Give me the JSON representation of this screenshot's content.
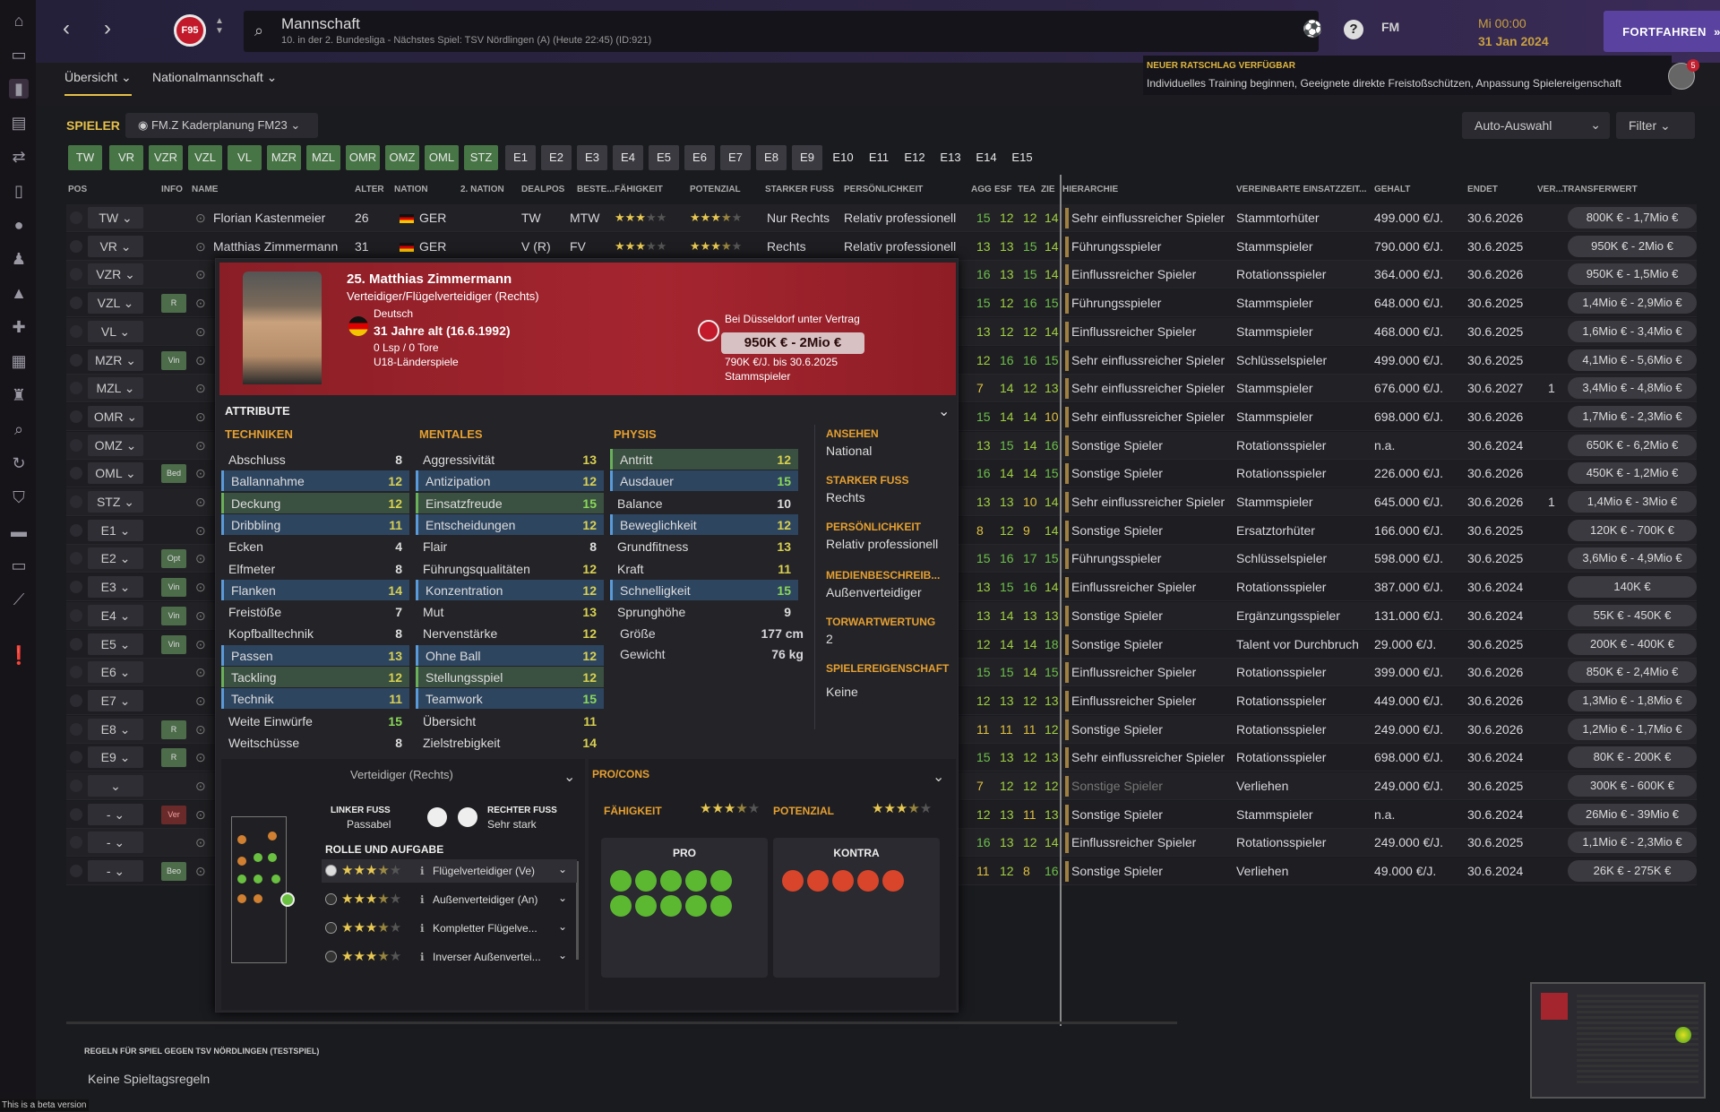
{
  "header": {
    "title": "Mannschaft",
    "subtitle": "10. in der 2. Bundesliga - Nächstes Spiel: TSV Nördlingen (A) (Heute 22:45) (ID:921)",
    "club_badge": "F95",
    "fm_label": "FM",
    "time": "Mi 00:00",
    "date": "31 Jan 2024",
    "continue_label": "FORTFAHREN"
  },
  "subnav": {
    "overview": "Übersicht",
    "national": "Nationalmannschaft"
  },
  "advice": {
    "title": "NEUER RATSCHLAG VERFÜGBAR",
    "text": "Individuelles Training beginnen, Geeignete direkte Freistoßschützen, Anpassung Spielereigenschaft",
    "badge": "5"
  },
  "toolbar": {
    "players_title": "SPIELER",
    "view": "FM.Z Kaderplanung FM23",
    "auto": "Auto-Auswahl",
    "filter": "Filter"
  },
  "pos_tabs": [
    "TW",
    "VR",
    "VZR",
    "VZL",
    "VL",
    "MZR",
    "MZL",
    "OMR",
    "OMZ",
    "OML",
    "STZ",
    "E1",
    "E2",
    "E3",
    "E4",
    "E5",
    "E6",
    "E7",
    "E8",
    "E9",
    "E10",
    "E11",
    "E12",
    "E13",
    "E14",
    "E15"
  ],
  "columns": [
    "POS",
    "INFO",
    "NAME",
    "ALTER",
    "NATION",
    "2. NATION",
    "DEALPOS",
    "BESTE...",
    "FÄHIGKEIT",
    "POTENZIAL",
    "STARKER FUSS",
    "PERSÖNLICHKEIT",
    "AGG",
    "ESF",
    "TEA",
    "ZIE",
    "HIERARCHIE",
    "VEREINBARTE EINSATZZEIT...",
    "GEHALT",
    "ENDET",
    "VER...",
    "TRANSFERWERT"
  ],
  "rows": [
    {
      "pos": "TW",
      "info": "",
      "name": "Florian Kastenmeier",
      "age": "26",
      "nation": "GER",
      "dealpos": "TW",
      "best": "MTW",
      "foot": "Nur Rechts",
      "pers": "Relativ professionell",
      "agg": "15",
      "esf": "12",
      "tea": "12",
      "zie": "14",
      "hier": "Sehr einflussreicher Spieler",
      "time": "Stammtorhüter",
      "wage": "499.000 €/J.",
      "end": "30.6.2026",
      "ver": "",
      "tv": "800K € - 1,7Mio €"
    },
    {
      "pos": "VR",
      "info": "",
      "name": "Matthias Zimmermann",
      "age": "31",
      "nation": "GER",
      "dealpos": "V (R)",
      "best": "FV",
      "foot": "Rechts",
      "pers": "Relativ professionell",
      "agg": "13",
      "esf": "13",
      "tea": "15",
      "zie": "14",
      "hier": "Führungsspieler",
      "time": "Stammspieler",
      "wage": "790.000 €/J.",
      "end": "30.6.2025",
      "ver": "",
      "tv": "950K € - 2Mio €"
    },
    {
      "pos": "VZR",
      "info": "",
      "agg": "16",
      "esf": "13",
      "tea": "15",
      "zie": "14",
      "hier": "Einflussreicher Spieler",
      "time": "Rotationsspieler",
      "wage": "364.000 €/J.",
      "end": "30.6.2026",
      "ver": "",
      "tv": "950K € - 1,5Mio €"
    },
    {
      "pos": "VZL",
      "info": "R",
      "agg": "15",
      "esf": "12",
      "tea": "16",
      "zie": "15",
      "hier": "Führungsspieler",
      "time": "Stammspieler",
      "wage": "648.000 €/J.",
      "end": "30.6.2025",
      "ver": "",
      "tv": "1,4Mio € - 2,9Mio €"
    },
    {
      "pos": "VL",
      "info": "",
      "agg": "13",
      "esf": "12",
      "tea": "12",
      "zie": "14",
      "hier": "Einflussreicher Spieler",
      "time": "Stammspieler",
      "wage": "468.000 €/J.",
      "end": "30.6.2025",
      "ver": "",
      "tv": "1,6Mio € - 3,4Mio €"
    },
    {
      "pos": "MZR",
      "info": "Vin",
      "agg": "12",
      "esf": "16",
      "tea": "16",
      "zie": "15",
      "hier": "Sehr einflussreicher Spieler",
      "time": "Schlüsselspieler",
      "wage": "499.000 €/J.",
      "end": "30.6.2025",
      "ver": "",
      "tv": "4,1Mio € - 5,6Mio €"
    },
    {
      "pos": "MZL",
      "info": "",
      "agg": "7",
      "esf": "14",
      "tea": "12",
      "zie": "13",
      "hier": "Sehr einflussreicher Spieler",
      "time": "Stammspieler",
      "wage": "676.000 €/J.",
      "end": "30.6.2027",
      "ver": "1",
      "tv": "3,4Mio € - 4,8Mio €"
    },
    {
      "pos": "OMR",
      "info": "",
      "agg": "15",
      "esf": "14",
      "tea": "14",
      "zie": "10",
      "hier": "Sehr einflussreicher Spieler",
      "time": "Stammspieler",
      "wage": "698.000 €/J.",
      "end": "30.6.2026",
      "ver": "",
      "tv": "1,7Mio € - 2,3Mio €"
    },
    {
      "pos": "OMZ",
      "info": "",
      "agg": "13",
      "esf": "15",
      "tea": "14",
      "zie": "16",
      "hier": "Sonstige Spieler",
      "time": "Rotationsspieler",
      "wage": "n.a.",
      "end": "30.6.2024",
      "ver": "",
      "tv": "650K € - 6,2Mio €"
    },
    {
      "pos": "OML",
      "info": "Bed",
      "agg": "16",
      "esf": "14",
      "tea": "14",
      "zie": "15",
      "hier": "Sonstige Spieler",
      "time": "Rotationsspieler",
      "wage": "226.000 €/J.",
      "end": "30.6.2026",
      "ver": "",
      "tv": "450K € - 1,2Mio €"
    },
    {
      "pos": "STZ",
      "info": "",
      "agg": "13",
      "esf": "13",
      "tea": "10",
      "zie": "14",
      "hier": "Sehr einflussreicher Spieler",
      "time": "Stammspieler",
      "wage": "645.000 €/J.",
      "end": "30.6.2026",
      "ver": "1",
      "tv": "1,4Mio € - 3Mio €"
    },
    {
      "pos": "E1",
      "info": "",
      "agg": "8",
      "esf": "12",
      "tea": "9",
      "zie": "14",
      "hier": "Sonstige Spieler",
      "time": "Ersatztorhüter",
      "wage": "166.000 €/J.",
      "end": "30.6.2025",
      "ver": "",
      "tv": "120K € - 700K €"
    },
    {
      "pos": "E2",
      "info": "Opt",
      "agg": "15",
      "esf": "16",
      "tea": "17",
      "zie": "15",
      "hier": "Führungsspieler",
      "time": "Schlüsselspieler",
      "wage": "598.000 €/J.",
      "end": "30.6.2025",
      "ver": "",
      "tv": "3,6Mio € - 4,9Mio €"
    },
    {
      "pos": "E3",
      "info": "Vin",
      "agg": "13",
      "esf": "15",
      "tea": "16",
      "zie": "14",
      "hier": "Einflussreicher Spieler",
      "time": "Rotationsspieler",
      "wage": "387.000 €/J.",
      "end": "30.6.2024",
      "ver": "",
      "tv": "140K €"
    },
    {
      "pos": "E4",
      "info": "Vin",
      "agg": "13",
      "esf": "14",
      "tea": "13",
      "zie": "13",
      "hier": "Sonstige Spieler",
      "time": "Ergänzungsspieler",
      "wage": "131.000 €/J.",
      "end": "30.6.2024",
      "ver": "",
      "tv": "55K € - 450K €"
    },
    {
      "pos": "E5",
      "info": "Vin",
      "agg": "12",
      "esf": "14",
      "tea": "14",
      "zie": "18",
      "hier": "Sonstige Spieler",
      "time": "Talent vor Durchbruch",
      "wage": "29.000 €/J.",
      "end": "30.6.2025",
      "ver": "",
      "tv": "200K € - 400K €"
    },
    {
      "pos": "E6",
      "info": "",
      "agg": "15",
      "esf": "15",
      "tea": "14",
      "zie": "15",
      "hier": "Einflussreicher Spieler",
      "time": "Rotationsspieler",
      "wage": "399.000 €/J.",
      "end": "30.6.2026",
      "ver": "",
      "tv": "850K € - 2,4Mio €"
    },
    {
      "pos": "E7",
      "info": "",
      "agg": "12",
      "esf": "13",
      "tea": "12",
      "zie": "13",
      "hier": "Einflussreicher Spieler",
      "time": "Rotationsspieler",
      "wage": "449.000 €/J.",
      "end": "30.6.2026",
      "ver": "",
      "tv": "1,3Mio € - 1,8Mio €"
    },
    {
      "pos": "E8",
      "info": "R",
      "agg": "11",
      "esf": "11",
      "tea": "11",
      "zie": "12",
      "hier": "Sonstige Spieler",
      "time": "Rotationsspieler",
      "wage": "249.000 €/J.",
      "end": "30.6.2026",
      "ver": "",
      "tv": "1,2Mio € - 1,7Mio €"
    },
    {
      "pos": "E9",
      "info": "R",
      "agg": "15",
      "esf": "13",
      "tea": "12",
      "zie": "13",
      "hier": "Sehr einflussreicher Spieler",
      "time": "Rotationsspieler",
      "wage": "698.000 €/J.",
      "end": "30.6.2024",
      "ver": "",
      "tv": "80K € - 200K €"
    },
    {
      "pos": "",
      "info": "",
      "agg": "7",
      "esf": "12",
      "tea": "12",
      "zie": "12",
      "hier": "Sonstige Spieler",
      "time": "Verliehen",
      "wage": "249.000 €/J.",
      "end": "30.6.2025",
      "ver": "",
      "tv": "300K € - 600K €"
    },
    {
      "pos": "-",
      "info": "Ver",
      "agg": "12",
      "esf": "13",
      "tea": "11",
      "zie": "13",
      "hier": "Sonstige Spieler",
      "time": "Stammspieler",
      "wage": "n.a.",
      "end": "30.6.2024",
      "ver": "",
      "tv": "26Mio € - 39Mio €"
    },
    {
      "pos": "-",
      "info": "",
      "agg": "16",
      "esf": "13",
      "tea": "12",
      "zie": "14",
      "hier": "Einflussreicher Spieler",
      "time": "Rotationsspieler",
      "wage": "249.000 €/J.",
      "end": "30.6.2025",
      "ver": "",
      "tv": "1,1Mio € - 2,3Mio €"
    },
    {
      "pos": "-",
      "info": "Beo",
      "agg": "11",
      "esf": "12",
      "tea": "8",
      "zie": "16",
      "hier": "Sonstige Spieler",
      "time": "Verliehen",
      "wage": "49.000 €/J.",
      "end": "30.6.2024",
      "ver": "",
      "tv": "26K € - 275K €"
    }
  ],
  "popup": {
    "name": "25. Matthias Zimmermann",
    "role": "Verteidiger/Flügelverteidiger (Rechts)",
    "nationality": "Deutsch",
    "age": "31 Jahre alt (16.6.1992)",
    "caps": "0 Lsp / 0 Tore",
    "youth": "U18-Länderspiele",
    "contract": "Bei Düsseldorf unter Vertrag",
    "value": "950K € - 2Mio €",
    "wage": "790K €/J. bis 30.6.2025",
    "status": "Stammspieler",
    "attr_title": "ATTRIBUTE",
    "cat_tech": "TECHNIKEN",
    "cat_ment": "MENTALES",
    "cat_phys": "PHYSIS",
    "tech": [
      [
        "Abschluss",
        "8"
      ],
      [
        "Ballannahme",
        "12"
      ],
      [
        "Deckung",
        "12"
      ],
      [
        "Dribbling",
        "11"
      ],
      [
        "Ecken",
        "4"
      ],
      [
        "Elfmeter",
        "8"
      ],
      [
        "Flanken",
        "14"
      ],
      [
        "Freistöße",
        "7"
      ],
      [
        "Kopfballtechnik",
        "8"
      ],
      [
        "Passen",
        "13"
      ],
      [
        "Tackling",
        "12"
      ],
      [
        "Technik",
        "11"
      ],
      [
        "Weite Einwürfe",
        "15"
      ],
      [
        "Weitschüsse",
        "8"
      ]
    ],
    "ment": [
      [
        "Aggressivität",
        "13"
      ],
      [
        "Antizipation",
        "12"
      ],
      [
        "Einsatzfreude",
        "15"
      ],
      [
        "Entscheidungen",
        "12"
      ],
      [
        "Flair",
        "8"
      ],
      [
        "Führungsqualitäten",
        "12"
      ],
      [
        "Konzentration",
        "12"
      ],
      [
        "Mut",
        "13"
      ],
      [
        "Nervenstärke",
        "12"
      ],
      [
        "Ohne Ball",
        "12"
      ],
      [
        "Stellungsspiel",
        "12"
      ],
      [
        "Teamwork",
        "15"
      ],
      [
        "Übersicht",
        "11"
      ],
      [
        "Zielstrebigkeit",
        "14"
      ]
    ],
    "phys": [
      [
        "Antritt",
        "12"
      ],
      [
        "Ausdauer",
        "15"
      ],
      [
        "Balance",
        "10"
      ],
      [
        "Beweglichkeit",
        "12"
      ],
      [
        "Grundfitness",
        "13"
      ],
      [
        "Kraft",
        "11"
      ],
      [
        "Schnelligkeit",
        "15"
      ],
      [
        "Sprunghöhe",
        "9"
      ]
    ],
    "height_label": "Größe",
    "height": "177 cm",
    "weight_label": "Gewicht",
    "weight": "76 kg",
    "info": [
      [
        "ANSEHEN",
        "National"
      ],
      [
        "STARKER FUSS",
        "Rechts"
      ],
      [
        "PERSÖNLICHKEIT",
        "Relativ professionell"
      ],
      [
        "MEDIENBESCHREIB...",
        "Außenverteidiger"
      ],
      [
        "TORWARTWERTUNG",
        "2"
      ],
      [
        "SPIELEREIGENSCHAFT",
        "Keine"
      ]
    ],
    "position": "Verteidiger (Rechts)",
    "left_foot_label": "LINKER FUSS",
    "left_foot": "Passabel",
    "right_foot_label": "RECHTER FUSS",
    "right_foot": "Sehr stark",
    "roles_title": "ROLLE UND AUFGABE",
    "roles": [
      "Flügelverteidiger (Ve)",
      "Außenverteidiger (An)",
      "Kompletter Flügelve...",
      "Inverser Außenvertei..."
    ],
    "procons": "PRO/CONS",
    "ability_label": "FÄHIGKEIT",
    "potential_label": "POTENZIAL",
    "pro": "PRO",
    "contra": "KONTRA"
  },
  "footer": {
    "rules_title": "REGELN FÜR SPIEL GEGEN TSV NÖRDLINGEN (TESTSPIEL)",
    "rules_text": "Keine Spieltagsregeln",
    "beta": "This is a beta version"
  },
  "colors": {
    "accent": "#e6c04a",
    "positive": "#477545",
    "hero": "#a5252f",
    "continue": "#5a43a0"
  }
}
